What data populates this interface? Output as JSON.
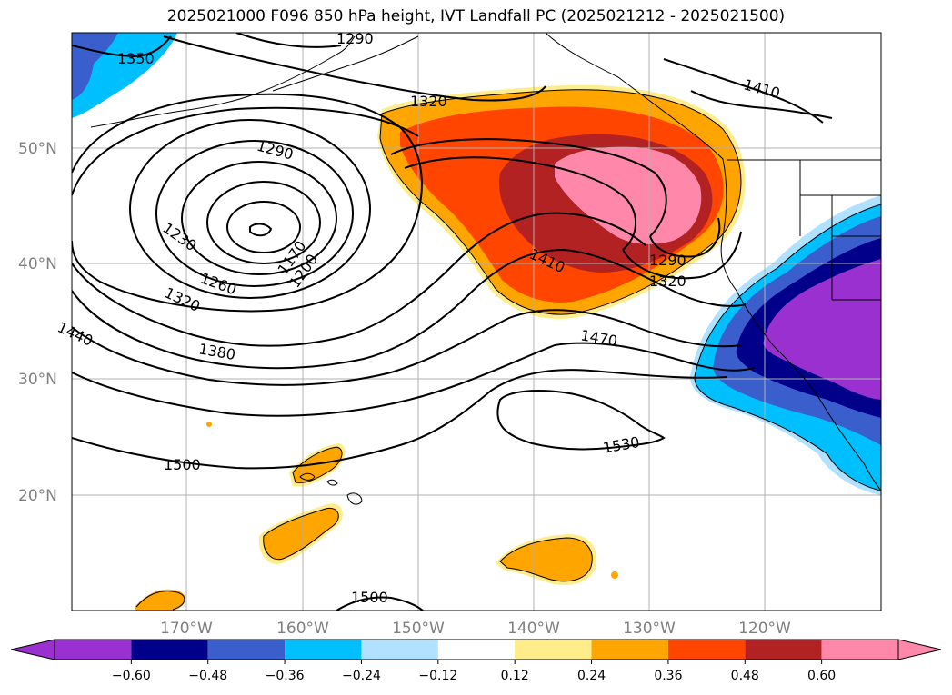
{
  "title": "2025021000 F096 850 hPa height, IVT Landfall PC (2025021212 - 2025021500)",
  "map": {
    "lat_labels": [
      "50°N",
      "40°N",
      "30°N",
      "20°N"
    ],
    "lon_labels": [
      "170°W",
      "160°W",
      "150°W",
      "140°W",
      "130°W",
      "120°W"
    ],
    "contour_labels": [
      "1350",
      "1290",
      "1320",
      "1290",
      "1230",
      "1170",
      "1200",
      "1260",
      "1320",
      "1380",
      "1440",
      "1410",
      "1290",
      "1320",
      "1470",
      "1500",
      "1530",
      "1500",
      "1410"
    ],
    "colors": {
      "grid": "#b0b0b0",
      "contour": "#000000",
      "coast": "#000000"
    }
  },
  "colorbar": {
    "levels": [
      "−0.60",
      "−0.48",
      "−0.36",
      "−0.24",
      "−0.12",
      "0.12",
      "0.24",
      "0.36",
      "0.48",
      "0.60"
    ],
    "colors": [
      "#9b30d0",
      "#00008b",
      "#3a5fcd",
      "#00bfff",
      "#b0e2ff",
      "#ffffff",
      "#ffec8b",
      "#ffa500",
      "#ff4500",
      "#b22222",
      "#ff88aa",
      "#ff88aa"
    ]
  }
}
